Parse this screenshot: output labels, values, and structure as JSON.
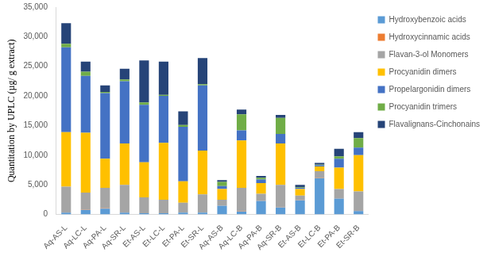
{
  "chart_data": {
    "type": "bar",
    "stacked": true,
    "grid": false,
    "legend": "right",
    "y_label": "Quantitation by UPLC (µg/ g extract)",
    "categories": [
      "Aq-AS-L",
      "Aq-LC-L",
      "Aq-PA-L",
      "Aq-SR-L",
      "Et-AS-L",
      "Et-LC-L",
      "Et-PA-L",
      "Et-SR-L",
      "Aq-AS-B",
      "Aq-LC-B",
      "Aq-PA-B",
      "Aq-SR-B",
      "Et-AS-B",
      "Et-LC-B",
      "Et-PA-B",
      "Et-SR-B"
    ],
    "ylim": [
      0,
      35000
    ],
    "yticks": [
      0,
      {
        "value": 5000,
        "label": "5,000"
      },
      {
        "value": 10000,
        "label": "10,000"
      },
      {
        "value": 15000,
        "label": "15,000"
      },
      {
        "value": 20000,
        "label": "20,000"
      },
      {
        "value": 25000,
        "label": "25,000"
      },
      {
        "value": 30000,
        "label": "30,000"
      },
      {
        "value": 35000,
        "label": "35,000"
      }
    ],
    "series": [
      {
        "name": "Hydroxybenzoic acids",
        "color": "#5b9bd5",
        "values": [
          300,
          800,
          1000,
          300,
          200,
          200,
          300,
          300,
          1500,
          500,
          2300,
          1200,
          2400,
          6100,
          2700,
          600
        ]
      },
      {
        "name": "Hydroxycinnamic acids",
        "color": "#ed7d31",
        "values": [
          50,
          50,
          50,
          50,
          30,
          30,
          30,
          30,
          30,
          30,
          30,
          30,
          30,
          30,
          30,
          30
        ]
      },
      {
        "name": "Flavan-3-ol Monomers",
        "color": "#a5a5a5",
        "values": [
          4350,
          2850,
          3450,
          4650,
          2670,
          2270,
          1670,
          3070,
          970,
          3970,
          1170,
          3770,
          770,
          1170,
          1570,
          3270
        ]
      },
      {
        "name": "Procyanidin dimers",
        "color": "#ffc000",
        "values": [
          9200,
          10100,
          4900,
          7000,
          5900,
          9600,
          3600,
          7400,
          1800,
          8000,
          1800,
          7000,
          1100,
          800,
          3600,
          6100
        ]
      },
      {
        "name": "Propelargonidin dimers",
        "color": "#4472c4",
        "values": [
          14300,
          9600,
          11100,
          10500,
          9700,
          7900,
          9200,
          11000,
          500,
          1700,
          600,
          1600,
          200,
          200,
          1500,
          1300
        ]
      },
      {
        "name": "Procyanidin trimers",
        "color": "#70ad47",
        "values": [
          600,
          700,
          200,
          300,
          400,
          200,
          300,
          200,
          700,
          2700,
          300,
          2700,
          100,
          100,
          400,
          1600
        ]
      },
      {
        "name": "Flavalignans-Cinchonains",
        "color": "#264478",
        "values": [
          3500,
          1700,
          1100,
          1800,
          7100,
          5600,
          2300,
          4400,
          300,
          800,
          300,
          500,
          400,
          300,
          1300,
          1000
        ]
      }
    ]
  }
}
